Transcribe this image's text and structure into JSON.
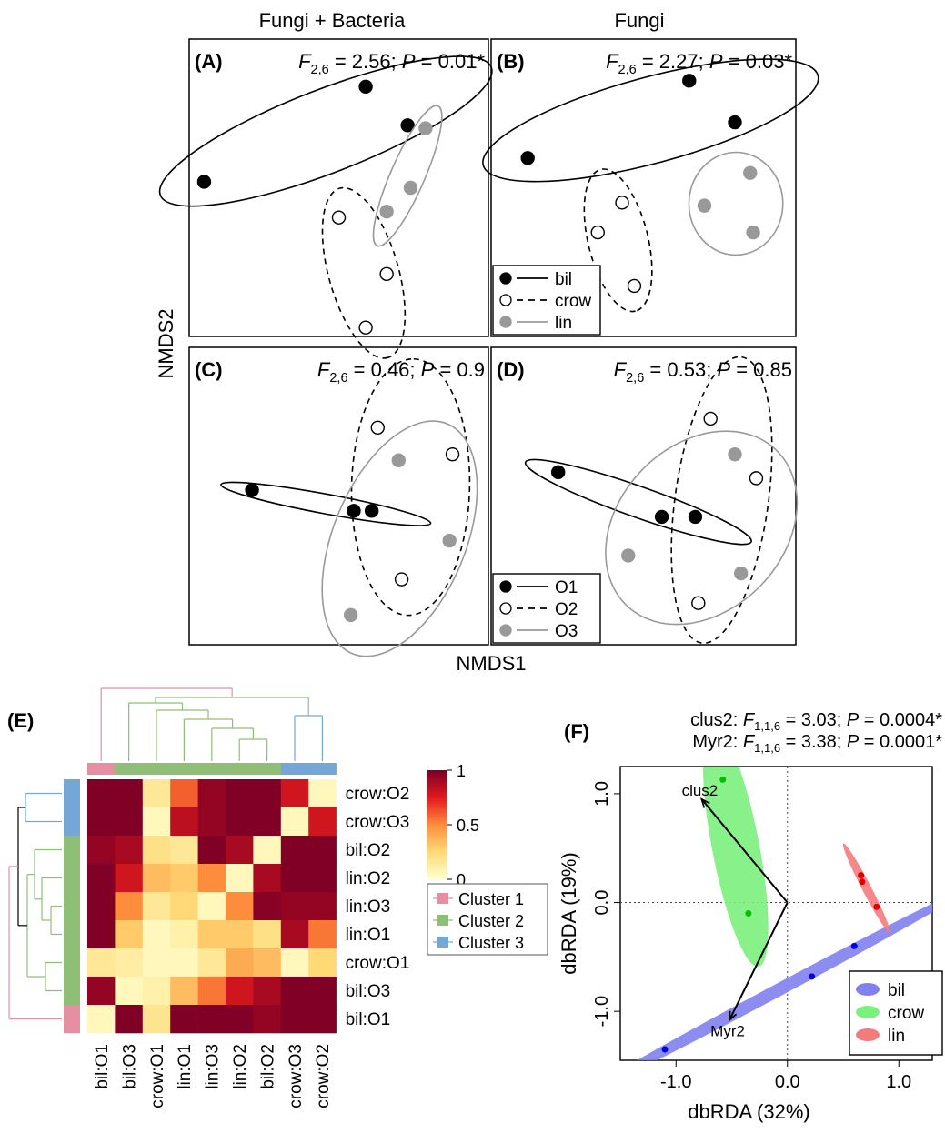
{
  "column_titles": [
    "Fungi + Bacteria",
    "Fungi"
  ],
  "nmds_axis_labels": {
    "x": "NMDS1",
    "y": "NMDS2"
  },
  "legend_host": {
    "host": [
      "bil",
      "crow",
      "lin"
    ],
    "order": [
      "O1",
      "O2",
      "O3"
    ]
  },
  "colors": {
    "bil_host": "#000000",
    "crow_host": "#ffffff",
    "lin_host": "#999999",
    "dbrda_bil": "#8080f0",
    "dbrda_crow": "#7cf07c",
    "dbrda_lin": "#f47b7b",
    "vector": "#000000"
  },
  "chart_data": [
    {
      "id": "A",
      "type": "scatter",
      "title": "(A)",
      "column": "Fungi + Bacteria",
      "stat": {
        "F_sub": "2,6",
        "F": "2.56",
        "P": "0.01*"
      },
      "grouping": "host",
      "groups": [
        {
          "name": "bil",
          "style": "solid-black",
          "points": [
            [
              0.05,
              0.52
            ],
            [
              0.59,
              0.84
            ],
            [
              0.73,
              0.71
            ]
          ]
        },
        {
          "name": "crow",
          "style": "dashed-open",
          "points": [
            [
              0.5,
              0.4
            ],
            [
              0.66,
              0.21
            ],
            [
              0.59,
              0.03
            ]
          ]
        },
        {
          "name": "lin",
          "style": "solid-gray",
          "points": [
            [
              0.79,
              0.7
            ],
            [
              0.74,
              0.5
            ],
            [
              0.66,
              0.42
            ]
          ]
        }
      ]
    },
    {
      "id": "B",
      "type": "scatter",
      "title": "(B)",
      "column": "Fungi",
      "stat": {
        "F_sub": "2,6",
        "F": "2.27",
        "P": "0.03*"
      },
      "grouping": "host",
      "groups": [
        {
          "name": "bil",
          "style": "solid-black",
          "points": [
            [
              0.12,
              0.6
            ],
            [
              0.65,
              0.86
            ],
            [
              0.8,
              0.72
            ]
          ]
        },
        {
          "name": "crow",
          "style": "dashed-open",
          "points": [
            [
              0.43,
              0.45
            ],
            [
              0.35,
              0.35
            ],
            [
              0.47,
              0.17
            ]
          ]
        },
        {
          "name": "lin",
          "style": "solid-gray",
          "points": [
            [
              0.7,
              0.44
            ],
            [
              0.85,
              0.55
            ],
            [
              0.86,
              0.35
            ]
          ]
        }
      ]
    },
    {
      "id": "C",
      "type": "scatter",
      "title": "(C)",
      "column": "Fungi + Bacteria",
      "stat": {
        "F_sub": "2,6",
        "F": "0.46",
        "P": "0.9"
      },
      "grouping": "order",
      "groups": [
        {
          "name": "O1",
          "style": "solid-black",
          "points": [
            [
              0.21,
              0.52
            ],
            [
              0.55,
              0.45
            ],
            [
              0.61,
              0.45
            ]
          ]
        },
        {
          "name": "O2",
          "style": "dashed-open",
          "points": [
            [
              0.63,
              0.73
            ],
            [
              0.88,
              0.64
            ],
            [
              0.71,
              0.22
            ]
          ]
        },
        {
          "name": "O3",
          "style": "solid-gray",
          "points": [
            [
              0.7,
              0.62
            ],
            [
              0.87,
              0.35
            ],
            [
              0.54,
              0.1
            ]
          ]
        }
      ]
    },
    {
      "id": "D",
      "type": "scatter",
      "title": "(D)",
      "column": "Fungi",
      "stat": {
        "F_sub": "2,6",
        "F": "0.53",
        "P": "0.85"
      },
      "grouping": "order",
      "groups": [
        {
          "name": "O1",
          "style": "solid-black",
          "points": [
            [
              0.22,
              0.58
            ],
            [
              0.56,
              0.43
            ],
            [
              0.67,
              0.43
            ]
          ]
        },
        {
          "name": "O2",
          "style": "dashed-open",
          "points": [
            [
              0.72,
              0.76
            ],
            [
              0.87,
              0.56
            ],
            [
              0.68,
              0.14
            ]
          ]
        },
        {
          "name": "O3",
          "style": "solid-gray",
          "points": [
            [
              0.8,
              0.64
            ],
            [
              0.45,
              0.3
            ],
            [
              0.82,
              0.24
            ]
          ]
        }
      ]
    },
    {
      "id": "E",
      "type": "heatmap",
      "title": "(E)",
      "columns": [
        "bil:O1",
        "bil:O3",
        "crow:O1",
        "lin:O1",
        "lin:O3",
        "lin:O2",
        "bil:O2",
        "crow:O3",
        "crow:O2"
      ],
      "rows": [
        "crow:O2",
        "crow:O3",
        "bil:O2",
        "lin:O2",
        "lin:O3",
        "lin:O1",
        "crow:O1",
        "bil:O3",
        "bil:O1"
      ],
      "row_clusters": [
        3,
        3,
        2,
        2,
        2,
        2,
        2,
        2,
        1
      ],
      "col_clusters": [
        1,
        2,
        2,
        2,
        2,
        2,
        2,
        3,
        3
      ],
      "values": [
        [
          1.0,
          1.0,
          0.15,
          0.6,
          0.95,
          1.0,
          1.0,
          0.8,
          0.05
        ],
        [
          1.0,
          1.0,
          0.05,
          0.85,
          0.95,
          1.0,
          1.0,
          0.05,
          0.8
        ],
        [
          0.95,
          0.9,
          0.2,
          0.15,
          1.0,
          0.9,
          0.05,
          1.0,
          1.0
        ],
        [
          1.0,
          0.8,
          0.35,
          0.3,
          0.5,
          0.05,
          0.9,
          1.0,
          1.0
        ],
        [
          1.0,
          0.5,
          0.15,
          0.25,
          0.05,
          0.5,
          0.98,
          0.95,
          0.95
        ],
        [
          1.0,
          0.3,
          0.05,
          0.1,
          0.3,
          0.3,
          0.2,
          0.9,
          0.55
        ],
        [
          0.15,
          0.12,
          0.05,
          0.05,
          0.15,
          0.4,
          0.35,
          0.05,
          0.25
        ],
        [
          0.95,
          0.05,
          0.1,
          0.35,
          0.55,
          0.8,
          0.9,
          1.0,
          1.0
        ],
        [
          0.05,
          1.0,
          0.18,
          1.0,
          1.0,
          1.0,
          0.95,
          1.0,
          1.0
        ]
      ],
      "colorbar": {
        "ticks": [
          "1",
          "0.5",
          "0"
        ],
        "range": [
          0,
          1
        ]
      },
      "cluster_legend": [
        "Cluster 1",
        "Cluster 2",
        "Cluster 3"
      ],
      "cluster_colors": [
        "#e48fa2",
        "#8fbf76",
        "#74a6d6"
      ]
    },
    {
      "id": "F",
      "type": "scatter",
      "title": "(F)",
      "stat_lines": [
        {
          "term": "clus2",
          "F_sub": "1,1,6",
          "F": "3.03",
          "P": "0.0004*"
        },
        {
          "term": "Myr2",
          "F_sub": "1,1,6",
          "F": "3.38",
          "P": "0.0001*"
        }
      ],
      "xlabel": "dbRDA (32%)",
      "ylabel": "dbRDA (19%)",
      "xlim": [
        -1.5,
        1.3
      ],
      "ylim": [
        -1.45,
        1.25
      ],
      "xticks": [
        "-1.0",
        "0.0",
        "1.0"
      ],
      "yticks": [
        "-1.0",
        "0.0",
        "1.0"
      ],
      "xtick_values": [
        -1.0,
        0.0,
        1.0
      ],
      "ytick_values": [
        -1.0,
        0.0,
        1.0
      ],
      "series": [
        {
          "name": "bil",
          "points": [
            [
              -1.1,
              -1.35
            ],
            [
              0.22,
              -0.68
            ],
            [
              0.6,
              -0.4
            ]
          ]
        },
        {
          "name": "crow",
          "points": [
            [
              -0.58,
              1.13
            ],
            [
              -0.35,
              -0.1
            ]
          ]
        },
        {
          "name": "lin",
          "points": [
            [
              0.66,
              0.25
            ],
            [
              0.67,
              0.19
            ],
            [
              0.8,
              -0.04
            ]
          ]
        }
      ],
      "vectors": [
        {
          "label": "clus2",
          "x": -0.77,
          "y": 0.95
        },
        {
          "label": "Myr2",
          "x": -0.52,
          "y": -1.08
        }
      ]
    }
  ]
}
